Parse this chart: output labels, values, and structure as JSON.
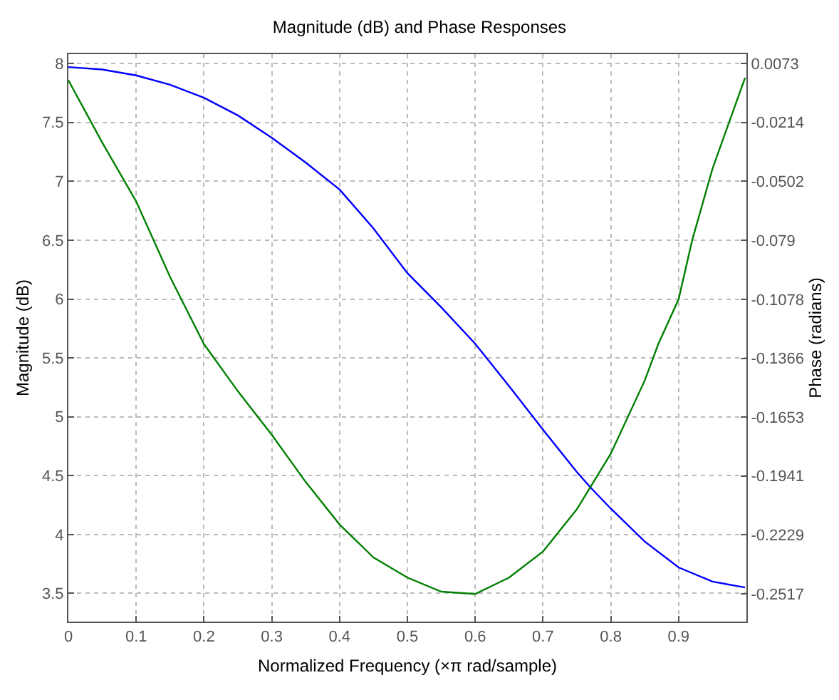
{
  "chart_data": {
    "type": "line",
    "title": "Magnitude (dB) and Phase Responses",
    "xlabel": "Normalized Frequency (×π rad/sample)",
    "ylabel": "Magnitude (dB)",
    "y2label": "Phase (radians)",
    "series": [
      {
        "color": "#0000ff",
        "x": [
          0,
          0.05,
          0.1,
          0.15,
          0.2,
          0.25,
          0.3,
          0.35,
          0.4,
          0.45,
          0.5,
          0.55,
          0.6,
          0.65,
          0.7,
          0.75,
          0.77,
          0.8,
          0.85,
          0.9,
          0.95,
          0.998
        ],
        "values": [
          7.97,
          7.95,
          7.9,
          7.82,
          7.71,
          7.56,
          7.37,
          7.16,
          6.93,
          6.6,
          6.22,
          5.93,
          5.62,
          5.26,
          4.89,
          4.53,
          4.4,
          4.22,
          3.94,
          3.72,
          3.6,
          3.55
        ]
      },
      {
        "color": "#008000",
        "axis": "y2",
        "x": [
          0,
          0.05,
          0.1,
          0.15,
          0.2,
          0.25,
          0.3,
          0.35,
          0.4,
          0.45,
          0.5,
          0.55,
          0.6,
          0.65,
          0.7,
          0.75,
          0.8,
          0.85,
          0.87,
          0.9,
          0.92,
          0.95,
          0.998
        ],
        "values": [
          -0.0008,
          -0.0313,
          -0.06,
          -0.0969,
          -0.1297,
          -0.1527,
          -0.174,
          -0.197,
          -0.2178,
          -0.2339,
          -0.2437,
          -0.2506,
          -0.2517,
          -0.2437,
          -0.231,
          -0.2103,
          -0.1832,
          -0.1475,
          -0.1297,
          -0.1078,
          -0.079,
          -0.044,
          0.0004
        ]
      }
    ],
    "xlim": [
      0,
      1
    ],
    "xticks": [
      0,
      0.1,
      0.2,
      0.3,
      0.4,
      0.5,
      0.6,
      0.7,
      0.8,
      0.9
    ],
    "ylim": [
      3.26,
      8.08
    ],
    "yticks": [
      3.5,
      4,
      4.5,
      5,
      5.5,
      6,
      6.5,
      7,
      7.5,
      8
    ],
    "y2lim": [
      -0.2652,
      0.0119
    ],
    "y2ticks": [
      -0.2517,
      -0.2229,
      -0.1941,
      -0.1653,
      -0.1366,
      -0.1078,
      -0.079,
      -0.0502,
      -0.0214,
      0.0073
    ],
    "grid": true,
    "line_style": "solid",
    "marker": "none"
  }
}
